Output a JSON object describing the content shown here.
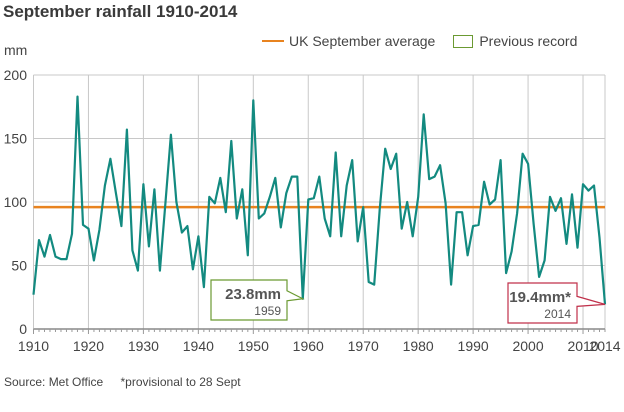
{
  "chart_data": {
    "type": "line",
    "title": "September rainfall 1910-2014",
    "ylabel": "mm",
    "xlim": [
      1910,
      2014
    ],
    "ylim": [
      0,
      200
    ],
    "grid": true,
    "legend_placement": "top-right",
    "x_ticks": [
      "1910",
      "1920",
      "1930",
      "1940",
      "1950",
      "1960",
      "1970",
      "1980",
      "1990",
      "2000",
      "2010",
      "2014"
    ],
    "y_ticks": [
      "0",
      "50",
      "100",
      "150",
      "200"
    ],
    "legend": {
      "average_label": "UK September average",
      "record_label": "Previous record"
    },
    "average": 96,
    "colors": {
      "series": "#138a80",
      "average": "#e8831f",
      "previous_record": "#6b9a32",
      "current_record": "#c0304a"
    },
    "x": [
      1910,
      1911,
      1912,
      1913,
      1914,
      1915,
      1916,
      1917,
      1918,
      1919,
      1920,
      1921,
      1922,
      1923,
      1924,
      1925,
      1926,
      1927,
      1928,
      1929,
      1930,
      1931,
      1932,
      1933,
      1934,
      1935,
      1936,
      1937,
      1938,
      1939,
      1940,
      1941,
      1942,
      1943,
      1944,
      1945,
      1946,
      1947,
      1948,
      1949,
      1950,
      1951,
      1952,
      1953,
      1954,
      1955,
      1956,
      1957,
      1958,
      1959,
      1960,
      1961,
      1962,
      1963,
      1964,
      1965,
      1966,
      1967,
      1968,
      1969,
      1970,
      1971,
      1972,
      1973,
      1974,
      1975,
      1976,
      1977,
      1978,
      1979,
      1980,
      1981,
      1982,
      1983,
      1984,
      1985,
      1986,
      1987,
      1988,
      1989,
      1990,
      1991,
      1992,
      1993,
      1994,
      1995,
      1996,
      1997,
      1998,
      1999,
      2000,
      2001,
      2002,
      2003,
      2004,
      2005,
      2006,
      2007,
      2008,
      2009,
      2010,
      2011,
      2012,
      2013,
      2014
    ],
    "values": [
      27,
      70,
      57,
      74,
      57,
      55,
      55,
      75,
      183,
      82,
      79,
      54,
      78,
      113,
      134,
      107,
      81,
      157,
      62,
      46,
      114,
      65,
      110,
      46,
      99,
      153,
      100,
      76,
      81,
      47,
      73,
      33,
      104,
      99,
      119,
      92,
      148,
      87,
      110,
      58,
      180,
      87,
      91,
      104,
      119,
      80,
      107,
      120,
      120,
      23.8,
      102,
      103,
      120,
      87,
      73,
      139,
      73,
      113,
      133,
      69,
      96,
      37,
      35,
      94,
      142,
      126,
      138,
      79,
      100,
      73,
      104,
      169,
      118,
      120,
      129,
      99,
      35,
      92,
      92,
      58,
      81,
      82,
      116,
      98,
      102,
      133,
      44,
      61,
      91,
      138,
      130,
      83,
      41,
      54,
      104,
      93,
      103,
      67,
      106,
      64,
      114,
      109,
      113,
      72,
      19.4
    ],
    "annotations": [
      {
        "value_label": "23.8mm",
        "year_label": "1959"
      },
      {
        "value_label": "19.4mm*",
        "year_label": "2014"
      }
    ]
  },
  "source": {
    "label": "Source: Met Office",
    "note": "*provisional to 28 Sept"
  }
}
